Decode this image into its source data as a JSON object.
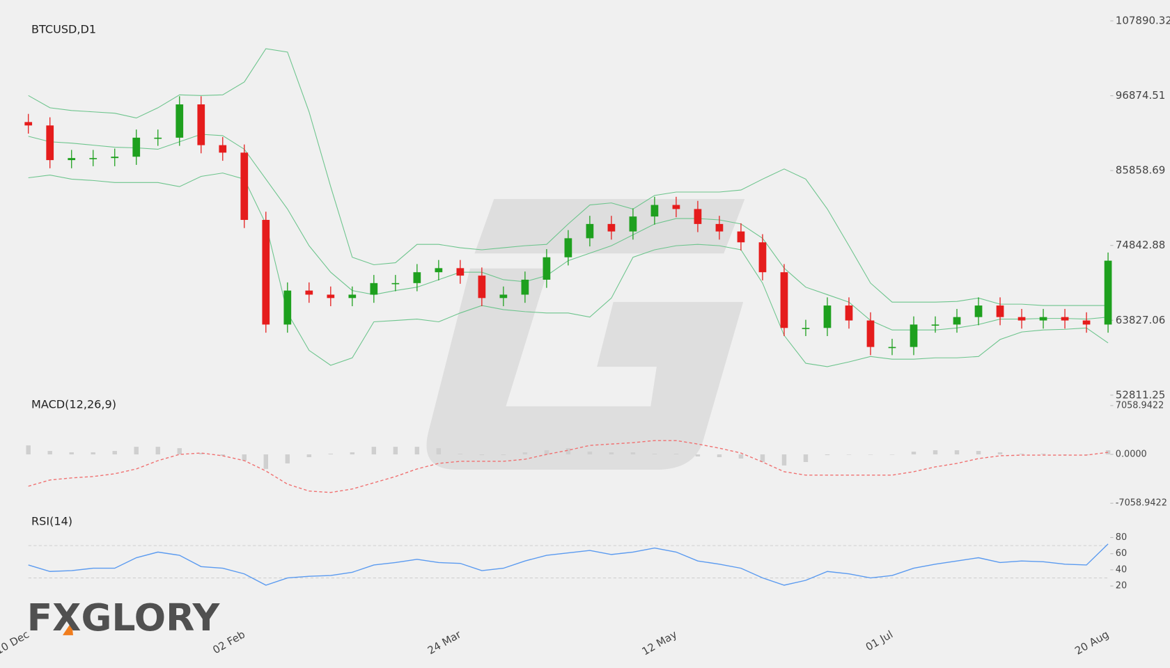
{
  "chart_data": [
    {
      "type": "candlestick",
      "title": "BTCUSD,D1",
      "categories": [
        "10 Dec",
        null,
        null,
        null,
        null,
        null,
        null,
        null,
        null,
        null,
        "02 Feb",
        null,
        null,
        null,
        null,
        null,
        null,
        null,
        null,
        null,
        "24 Mar",
        null,
        null,
        null,
        null,
        null,
        null,
        null,
        null,
        null,
        "12 May",
        null,
        null,
        null,
        null,
        null,
        null,
        null,
        null,
        null,
        "01 Jul",
        null,
        null,
        null,
        null,
        null,
        null,
        null,
        null,
        null,
        "20 Aug"
      ],
      "open": [
        93000,
        92500,
        87400,
        87700,
        87700,
        87900,
        90700,
        90700,
        95600,
        89600,
        88500,
        78600,
        63200,
        68200,
        67600,
        67100,
        67600,
        69300,
        69300,
        70900,
        71500,
        70400,
        67100,
        67600,
        69800,
        73100,
        75900,
        78000,
        76900,
        79100,
        80800,
        80200,
        78000,
        76900,
        75300,
        70900,
        62700,
        62700,
        66000,
        63800,
        59900,
        59900,
        63200,
        63200,
        64300,
        66000,
        64300,
        63800,
        64300,
        63800,
        63200
      ],
      "high": [
        94200,
        93700,
        88900,
        88900,
        89100,
        91900,
        91900,
        96800,
        96800,
        90800,
        89700,
        79800,
        69400,
        69400,
        68800,
        68800,
        70500,
        70500,
        72100,
        72700,
        72700,
        71600,
        68800,
        71000,
        74300,
        77100,
        79200,
        79200,
        80300,
        82000,
        82000,
        81400,
        79200,
        78100,
        76500,
        72100,
        63900,
        67200,
        67200,
        65000,
        61100,
        64400,
        64400,
        65500,
        67200,
        67200,
        65500,
        65500,
        65500,
        65000,
        73800
      ],
      "low": [
        91300,
        86200,
        86200,
        86500,
        86500,
        86700,
        89500,
        89500,
        88400,
        87300,
        77400,
        62000,
        62000,
        66400,
        65900,
        65900,
        66400,
        68100,
        68100,
        69700,
        69200,
        65900,
        65900,
        66400,
        68600,
        71900,
        74700,
        75700,
        75700,
        77900,
        79000,
        76800,
        75700,
        74100,
        69700,
        61500,
        61500,
        61500,
        62600,
        58700,
        58700,
        58700,
        62000,
        62000,
        63100,
        63100,
        62600,
        62600,
        62600,
        62000,
        62000
      ],
      "close": [
        92500,
        87400,
        87700,
        87700,
        87900,
        90700,
        90700,
        95600,
        89600,
        88500,
        78600,
        63200,
        68200,
        67600,
        67100,
        67600,
        69300,
        69300,
        70900,
        71500,
        70400,
        67100,
        67600,
        69800,
        73100,
        75900,
        78000,
        76900,
        79100,
        80800,
        80200,
        78000,
        76900,
        75300,
        70900,
        62700,
        62700,
        66000,
        63800,
        59900,
        59900,
        63200,
        63200,
        64300,
        66000,
        64300,
        63800,
        64300,
        63800,
        63200,
        72600
      ],
      "bands": {
        "upper": [
          96900,
          95100,
          94700,
          94500,
          94300,
          93600,
          95100,
          97000,
          96900,
          97000,
          98900,
          103800,
          103300,
          94500,
          83500,
          73100,
          72000,
          72300,
          75000,
          75000,
          74500,
          74200,
          74500,
          74800,
          75000,
          78000,
          80800,
          81100,
          80200,
          82200,
          82700,
          82700,
          82700,
          83000,
          84600,
          86100,
          84600,
          80200,
          74800,
          69300,
          66500,
          66500,
          66500,
          66600,
          67100,
          66200,
          66200,
          66000,
          66000,
          66000,
          66000
        ],
        "middle": [
          90900,
          90100,
          89900,
          89600,
          89300,
          89200,
          89000,
          90100,
          91200,
          91000,
          89000,
          84600,
          80200,
          74800,
          70900,
          68200,
          67600,
          68200,
          68700,
          69800,
          70900,
          70900,
          69800,
          69500,
          70400,
          72600,
          73700,
          74800,
          76400,
          78000,
          78800,
          78800,
          78600,
          78000,
          75900,
          71500,
          68700,
          67600,
          66500,
          63800,
          62400,
          62400,
          62400,
          62700,
          63200,
          64000,
          64000,
          64100,
          64100,
          64000,
          64300
        ],
        "lower": [
          84800,
          85200,
          84600,
          84400,
          84100,
          84100,
          84100,
          83500,
          85000,
          85500,
          84600,
          78000,
          64900,
          59400,
          57200,
          58300,
          63600,
          63800,
          64000,
          63600,
          64900,
          66000,
          65400,
          65100,
          64900,
          64900,
          64300,
          67100,
          73100,
          74200,
          74800,
          75000,
          74800,
          74200,
          69300,
          61600,
          57500,
          57000,
          57700,
          58500,
          58100,
          58100,
          58300,
          58300,
          58500,
          61000,
          62100,
          62400,
          62500,
          62700,
          60500
        ]
      },
      "up_color": "#1ea01e",
      "down_color": "#e51c1c",
      "band_color": "#6cc48c",
      "ylim": [
        52811.25,
        107890.32
      ],
      "yticks": [
        52811.25,
        63827.06,
        74842.88,
        85858.69,
        96874.51,
        107890.32
      ]
    },
    {
      "type": "macd",
      "title": "MACD(12,26,9)",
      "histogram": [
        1300,
        500,
        300,
        300,
        500,
        1100,
        1100,
        900,
        200,
        -200,
        -900,
        -2100,
        -1300,
        -400,
        100,
        300,
        1100,
        1100,
        1100,
        900,
        100,
        -100,
        -100,
        300,
        600,
        900,
        400,
        300,
        300,
        100,
        100,
        -300,
        -400,
        -600,
        -1100,
        -1600,
        -1100,
        -100,
        0,
        0,
        0,
        400,
        600,
        600,
        500,
        300,
        100,
        100,
        0,
        -100,
        600
      ],
      "signal": [
        -4600,
        -3700,
        -3400,
        -3200,
        -2800,
        -2100,
        -900,
        0,
        200,
        -200,
        -900,
        -2400,
        -4300,
        -5300,
        -5500,
        -5000,
        -4100,
        -3200,
        -2100,
        -1300,
        -1000,
        -1000,
        -1000,
        -700,
        0,
        600,
        1300,
        1500,
        1700,
        2000,
        2000,
        1500,
        900,
        200,
        -1100,
        -2500,
        -3000,
        -3000,
        -3000,
        -3000,
        -3000,
        -2500,
        -1800,
        -1300,
        -600,
        -200,
        -100,
        -100,
        -100,
        -100,
        300
      ],
      "hist_color": "#cfcfcf",
      "signal_color": "#f07070",
      "ylim": [
        -7058.9422,
        7058.9422
      ],
      "yticks": [
        -7058.9422,
        {
          "value": 0,
          "label": "0.0000"
        },
        7058.9422
      ]
    },
    {
      "type": "rsi",
      "title": "RSI(14)",
      "values": [
        46,
        38,
        39,
        42,
        42,
        55,
        62,
        58,
        44,
        42,
        35,
        21,
        30,
        32,
        33,
        37,
        46,
        49,
        53,
        49,
        48,
        39,
        42,
        51,
        58,
        61,
        64,
        59,
        62,
        67,
        62,
        51,
        47,
        42,
        30,
        21,
        27,
        38,
        35,
        30,
        33,
        42,
        47,
        51,
        55,
        49,
        51,
        50,
        47,
        46,
        72
      ],
      "color": "#5a9af0",
      "levels": [
        70,
        30
      ],
      "ylim": [
        20,
        80
      ],
      "yticks": [
        20,
        40,
        60,
        80
      ]
    }
  ],
  "logo": "FXGLORY"
}
